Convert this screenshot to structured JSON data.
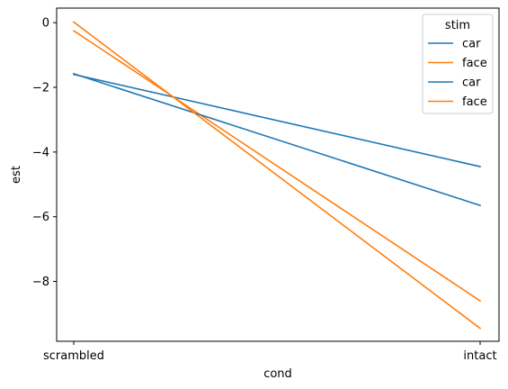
{
  "chart_data": {
    "type": "line",
    "categories": [
      "scrambled",
      "intact"
    ],
    "xlabel": "cond",
    "ylabel": "est",
    "ylim": [
      -9.85,
      0.45
    ],
    "yticks": [
      0,
      -2,
      -4,
      -6,
      -8
    ],
    "grid": false,
    "legend": {
      "title": "stim",
      "placement": "top-right"
    },
    "series": [
      {
        "name": "car",
        "color": "#1f77b4",
        "values": [
          -1.6,
          -4.45
        ]
      },
      {
        "name": "face",
        "color": "#ff7f0e",
        "values": [
          -0.25,
          -8.6
        ]
      },
      {
        "name": "car",
        "color": "#1f77b4",
        "values": [
          -1.58,
          -5.65
        ]
      },
      {
        "name": "face",
        "color": "#ff7f0e",
        "values": [
          0.02,
          -9.45
        ]
      }
    ]
  }
}
